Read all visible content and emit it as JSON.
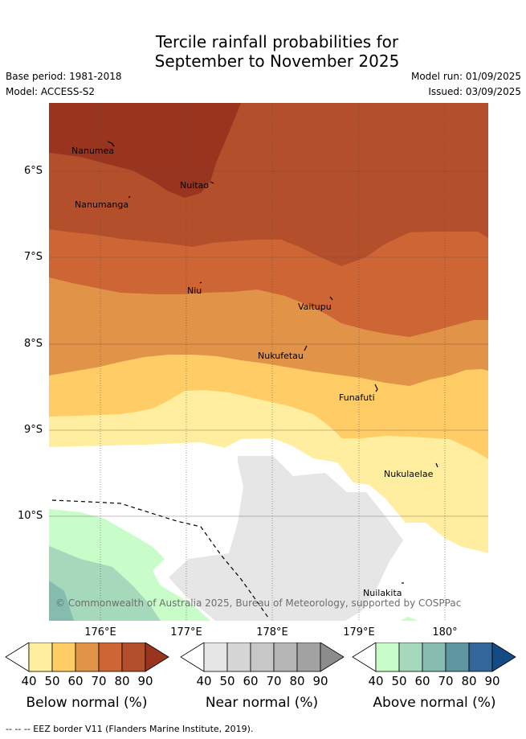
{
  "title_line1": "Tercile rainfall probabilities for",
  "title_line2": "September to November 2025",
  "base_period": "Base period: 1981-2018",
  "model": "Model: ACCESS-S2",
  "model_run": "Model run: 01/09/2025",
  "issued": "Issued: 03/09/2025",
  "lat_labels": [
    "6°S",
    "7°S",
    "8°S",
    "9°S",
    "10°S"
  ],
  "lon_labels": [
    "176°E",
    "177°E",
    "178°E",
    "179°E",
    "180°"
  ],
  "places": [
    "Nanumea",
    "Nuitao",
    "Nanumanga",
    "Niu",
    "Vaitupu",
    "Nukufetau",
    "Funafuti",
    "Nukulaelae",
    "Nuilakita"
  ],
  "copyright": "© Commonwealth of Australia 2025, Bureau of Meteorology, supported by COSPPac",
  "colorbars": [
    {
      "label": "Below normal (%)",
      "colors": [
        "#ffeea0",
        "#ffcc66",
        "#e19347",
        "#cd6534",
        "#b34f2b",
        "#99341f"
      ]
    },
    {
      "label": "Near normal (%)",
      "colors": [
        "#e6e6e6",
        "#d6d6d6",
        "#c7c7c7",
        "#b5b5b5",
        "#a3a3a3",
        "#8c8c8c"
      ]
    },
    {
      "label": "Above normal (%)",
      "colors": [
        "#c8fcc8",
        "#a6d8bb",
        "#86bcb0",
        "#5f96a1",
        "#336699",
        "#144b85"
      ]
    }
  ],
  "ticks": [
    "40",
    "50",
    "60",
    "70",
    "80",
    "90"
  ],
  "footer": "--  --  -- EEZ border V11 (Flanders Marine Institute, 2019)."
}
